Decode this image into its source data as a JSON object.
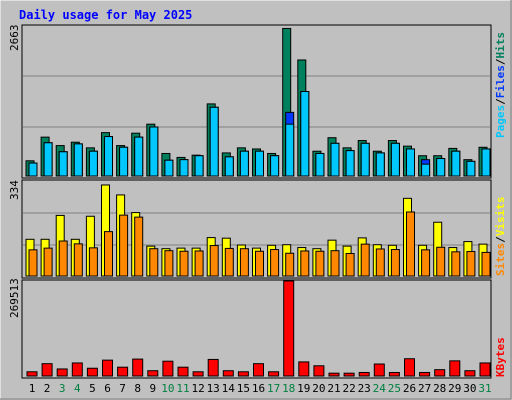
{
  "colors": {
    "background": "#c0c0c0",
    "plot_bg": "#c0c0c0",
    "title": "#0000ff",
    "hits": "#00805c",
    "files": "#0038ff",
    "pages": "#00c8ff",
    "visits": "#ffff00",
    "sites": "#ff8800",
    "kbytes": "#ff0000",
    "weekend": "#008040",
    "weekday": "#000000",
    "grid": "#808080",
    "axis_text": "#000000"
  },
  "chart_data": [
    {
      "type": "bar",
      "title": "Daily usage for May 2025",
      "panel": "hits-files-pages",
      "ymax_label": "2663",
      "legend_words": [
        "Pages",
        "/",
        "Files",
        "/",
        "Hits"
      ],
      "ylim": [
        0,
        2663
      ],
      "categories": [
        "1",
        "2",
        "3",
        "4",
        "5",
        "6",
        "7",
        "8",
        "9",
        "10",
        "11",
        "12",
        "13",
        "14",
        "15",
        "16",
        "17",
        "18",
        "19",
        "20",
        "21",
        "22",
        "23",
        "24",
        "25",
        "26",
        "27",
        "28",
        "29",
        "30",
        "31"
      ],
      "series": [
        {
          "name": "Hits",
          "values": [
            270,
            690,
            540,
            600,
            500,
            770,
            540,
            760,
            920,
            400,
            330,
            370,
            1280,
            410,
            500,
            480,
            400,
            2620,
            2060,
            440,
            680,
            500,
            630,
            440,
            630,
            530,
            360,
            360,
            490,
            290,
            510
          ]
        },
        {
          "name": "Files",
          "values": [
            230,
            590,
            430,
            570,
            440,
            700,
            510,
            690,
            870,
            280,
            290,
            360,
            1220,
            340,
            440,
            440,
            360,
            1130,
            1500,
            400,
            580,
            450,
            580,
            410,
            580,
            480,
            290,
            310,
            440,
            260,
            480
          ]
        },
        {
          "name": "Pages",
          "values": [
            230,
            590,
            430,
            570,
            440,
            700,
            510,
            690,
            870,
            280,
            290,
            360,
            1220,
            340,
            440,
            440,
            360,
            920,
            1500,
            400,
            580,
            450,
            580,
            410,
            580,
            480,
            210,
            310,
            440,
            260,
            480
          ]
        }
      ]
    },
    {
      "type": "bar",
      "panel": "visits-sites",
      "ymax_label": "334",
      "legend_words": [
        "Sites",
        "/",
        "Visits"
      ],
      "ylim": [
        0,
        334
      ],
      "categories": [
        "1",
        "2",
        "3",
        "4",
        "5",
        "6",
        "7",
        "8",
        "9",
        "10",
        "11",
        "12",
        "13",
        "14",
        "15",
        "16",
        "17",
        "18",
        "19",
        "20",
        "21",
        "22",
        "23",
        "24",
        "25",
        "26",
        "27",
        "28",
        "29",
        "30",
        "31"
      ],
      "series": [
        {
          "name": "Visits",
          "values": [
            129,
            129,
            213,
            129,
            210,
            320,
            285,
            223,
            105,
            96,
            98,
            98,
            135,
            133,
            109,
            98,
            108,
            110,
            100,
            96,
            126,
            105,
            134,
            110,
            108,
            273,
            108,
            189,
            100,
            121,
            112
          ]
        },
        {
          "name": "Sites",
          "values": [
            92,
            98,
            123,
            113,
            99,
            156,
            214,
            207,
            96,
            89,
            87,
            88,
            107,
            97,
            96,
            87,
            93,
            80,
            88,
            87,
            89,
            79,
            112,
            95,
            93,
            225,
            92,
            101,
            85,
            86,
            83
          ]
        }
      ]
    },
    {
      "type": "bar",
      "panel": "kbytes",
      "ymax_label": "269513",
      "legend_words": [
        "KBytes"
      ],
      "ylim": [
        0,
        269513
      ],
      "categories": [
        "1",
        "2",
        "3",
        "4",
        "5",
        "6",
        "7",
        "8",
        "9",
        "10",
        "11",
        "12",
        "13",
        "14",
        "15",
        "16",
        "17",
        "18",
        "19",
        "20",
        "21",
        "22",
        "23",
        "24",
        "25",
        "26",
        "27",
        "28",
        "29",
        "30",
        "31"
      ],
      "series": [
        {
          "name": "KBytes",
          "values": [
            12000,
            35000,
            20000,
            37000,
            22000,
            45000,
            25000,
            48000,
            15000,
            42000,
            25000,
            12000,
            47000,
            15000,
            12000,
            35000,
            12000,
            269513,
            40000,
            29000,
            8000,
            8000,
            10000,
            34000,
            10000,
            49000,
            10000,
            18000,
            43000,
            15000,
            37000
          ]
        }
      ]
    }
  ],
  "x_axis": {
    "labels": [
      "1",
      "2",
      "3",
      "4",
      "5",
      "6",
      "7",
      "8",
      "9",
      "10",
      "11",
      "12",
      "13",
      "14",
      "15",
      "16",
      "17",
      "18",
      "19",
      "20",
      "21",
      "22",
      "23",
      "24",
      "25",
      "26",
      "27",
      "28",
      "29",
      "30",
      "31"
    ],
    "weekend_days": [
      3,
      4,
      10,
      11,
      17,
      18,
      24,
      25,
      31
    ]
  }
}
